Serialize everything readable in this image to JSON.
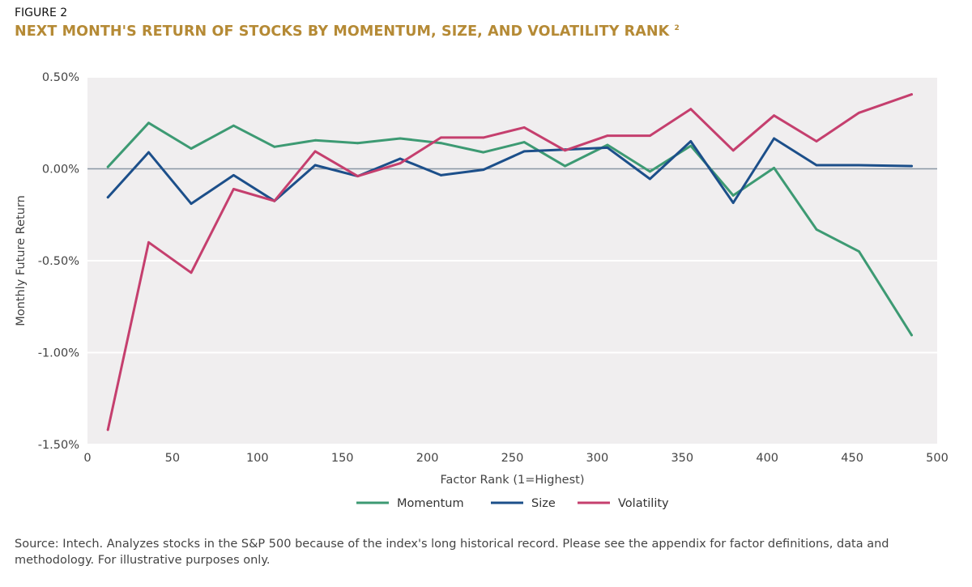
{
  "figure_label": "FIGURE 2",
  "title": "NEXT MONTH'S RETURN OF STOCKS BY MOMENTUM, SIZE, AND VOLATILITY RANK",
  "title_footnote": "2",
  "source_note": "Source: Intech. Analyzes stocks in the S&P 500 because of the index's long historical record. Please see the appendix for factor definitions, data and methodology. For illustrative purposes only.",
  "colors": {
    "momentum": "#3d9a73",
    "size": "#1c4f8a",
    "volatility": "#c53f6e",
    "title": "#b58a35",
    "plot_bg": "#f0eeef"
  },
  "chart_data": {
    "type": "line",
    "title": "NEXT MONTH'S RETURN OF STOCKS BY MOMENTUM, SIZE, AND VOLATILITY RANK",
    "xlabel": "Factor Rank (1=Highest)",
    "ylabel": "Monthly Future Return",
    "xlim": [
      0,
      500
    ],
    "ylim": [
      -1.5,
      0.5
    ],
    "x_ticks": [
      0,
      50,
      100,
      150,
      200,
      250,
      300,
      350,
      400,
      450,
      500
    ],
    "x_tick_labels": [
      "0",
      "50",
      "100",
      "150",
      "200",
      "250",
      "300",
      "350",
      "400",
      "450",
      "500"
    ],
    "y_ticks": [
      0.5,
      0.0,
      -0.5,
      -1.0,
      -1.5
    ],
    "y_tick_labels": [
      "0.50%",
      "0.00%",
      "-0.50%",
      "-1.00%",
      "-1.50%"
    ],
    "legend_position": "bottom-center",
    "x": [
      12,
      36,
      61,
      86,
      110,
      134,
      159,
      184,
      208,
      233,
      257,
      281,
      306,
      331,
      355,
      380,
      404,
      429,
      454,
      485
    ],
    "series": [
      {
        "name": "Momentum",
        "key": "momentum",
        "values": [
          0.01,
          0.25,
          0.11,
          0.235,
          0.12,
          0.155,
          0.14,
          0.165,
          0.14,
          0.09,
          0.145,
          0.015,
          0.13,
          -0.015,
          0.125,
          -0.145,
          0.005,
          -0.33,
          -0.45,
          -0.905
        ]
      },
      {
        "name": "Size",
        "key": "size",
        "values": [
          -0.155,
          0.09,
          -0.19,
          -0.035,
          -0.175,
          0.02,
          -0.04,
          0.055,
          -0.035,
          -0.005,
          0.095,
          0.105,
          0.115,
          -0.055,
          0.15,
          -0.185,
          0.165,
          0.02,
          0.02,
          0.015
        ]
      },
      {
        "name": "Volatility",
        "key": "volatility",
        "values": [
          -1.42,
          -0.4,
          -0.565,
          -0.11,
          -0.175,
          0.095,
          -0.04,
          0.03,
          0.17,
          0.17,
          0.225,
          0.1,
          0.18,
          0.18,
          0.325,
          0.1,
          0.29,
          0.15,
          0.305,
          0.405
        ]
      }
    ]
  }
}
